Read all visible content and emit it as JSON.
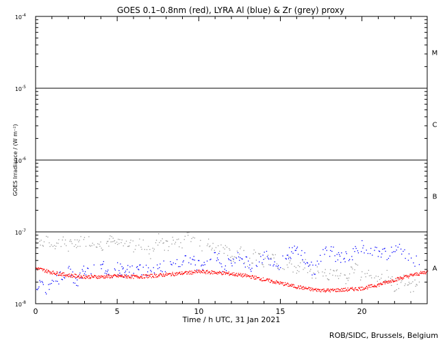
{
  "chart_data": {
    "type": "scatter",
    "title": "GOES 0.1–0.8nm (red), LYRA Al (blue) & Zr (grey) proxy",
    "xlabel": "Time / h UTC, 31 Jan 2021",
    "ylabel": "GOES Irradiance / (W m⁻²)",
    "credit": "ROB/SIDC, Brussels, Belgium",
    "xlim": [
      0,
      24
    ],
    "ylim_log10": [
      -8,
      -4
    ],
    "x_ticks": [
      {
        "value": 0,
        "label": "0"
      },
      {
        "value": 5,
        "label": "5"
      },
      {
        "value": 10,
        "label": "10"
      },
      {
        "value": 15,
        "label": "15"
      },
      {
        "value": 20,
        "label": "20"
      }
    ],
    "y_ticks": [
      {
        "exp": -8,
        "base": "10",
        "sup": "-8"
      },
      {
        "exp": -7,
        "base": "10",
        "sup": "-7"
      },
      {
        "exp": -6,
        "base": "10",
        "sup": "-6"
      },
      {
        "exp": -5,
        "base": "10",
        "sup": "-5"
      },
      {
        "exp": -4,
        "base": "10",
        "sup": "-4"
      }
    ],
    "flare_class_lines": [
      -7,
      -6,
      -5
    ],
    "flare_classes": [
      {
        "label": "A",
        "exp": -7.5
      },
      {
        "label": "B",
        "exp": -6.5
      },
      {
        "label": "C",
        "exp": -5.5
      },
      {
        "label": "M",
        "exp": -4.5
      }
    ],
    "series": [
      {
        "name": "GOES 0.1-0.8nm",
        "color": "#ff0000",
        "x": [
          0,
          1,
          2,
          3,
          4,
          5,
          6,
          7,
          8,
          9,
          10,
          11,
          12,
          13,
          14,
          15,
          16,
          17,
          18,
          19,
          20,
          21,
          22,
          23,
          24
        ],
        "y_log10": [
          -7.5,
          -7.56,
          -7.6,
          -7.62,
          -7.62,
          -7.61,
          -7.62,
          -7.61,
          -7.59,
          -7.57,
          -7.55,
          -7.56,
          -7.58,
          -7.61,
          -7.66,
          -7.71,
          -7.76,
          -7.8,
          -7.81,
          -7.8,
          -7.78,
          -7.73,
          -7.66,
          -7.6,
          -7.55
        ]
      },
      {
        "name": "LYRA Al proxy",
        "color": "#0000ff",
        "x": [
          0,
          0.5,
          1,
          1.5,
          2,
          2.5,
          3,
          3.5,
          4,
          4.5,
          5,
          5.5,
          6,
          6.5,
          7,
          7.5,
          8,
          8.5,
          9,
          9.5,
          10,
          10.5,
          11,
          11.5,
          12,
          12.5,
          13,
          13.5,
          14,
          14.5,
          15,
          15.5,
          16,
          16.5,
          17,
          17.5,
          18,
          18.5,
          19,
          19.5,
          20,
          20.5,
          21,
          21.5,
          22,
          22.5,
          23,
          23.5
        ],
        "y_log10": [
          -7.7,
          -7.8,
          -7.75,
          -7.6,
          -7.55,
          -7.7,
          -7.5,
          -7.55,
          -7.45,
          -7.6,
          -7.5,
          -7.55,
          -7.5,
          -7.55,
          -7.5,
          -7.45,
          -7.5,
          -7.48,
          -7.35,
          -7.4,
          -7.45,
          -7.4,
          -7.3,
          -7.5,
          -7.4,
          -7.35,
          -7.45,
          -7.5,
          -7.3,
          -7.4,
          -7.45,
          -7.3,
          -7.25,
          -7.35,
          -7.55,
          -7.3,
          -7.25,
          -7.35,
          -7.35,
          -7.3,
          -7.2,
          -7.25,
          -7.3,
          -7.3,
          -7.2,
          -7.3,
          -7.35,
          -7.45
        ]
      },
      {
        "name": "LYRA Zr proxy",
        "color": "#999999",
        "x": [
          0,
          0.5,
          1,
          1.5,
          2,
          2.5,
          3,
          3.5,
          4,
          4.5,
          5,
          5.5,
          6,
          6.5,
          7,
          7.5,
          8,
          8.5,
          9,
          9.5,
          10,
          10.5,
          11,
          11.5,
          12,
          12.5,
          13,
          13.5,
          14,
          14.5,
          15,
          15.5,
          16,
          16.5,
          17,
          17.5,
          18,
          18.5,
          19,
          19.5,
          20,
          20.5,
          21,
          21.5,
          22,
          22.5,
          23,
          23.5
        ],
        "y_log10": [
          -7.15,
          -7.13,
          -7.17,
          -7.12,
          -7.2,
          -7.12,
          -7.14,
          -7.1,
          -7.18,
          -7.12,
          -7.15,
          -7.12,
          -7.2,
          -7.15,
          -7.3,
          -7.1,
          -7.2,
          -7.1,
          -7.15,
          -7.05,
          -7.2,
          -7.15,
          -7.25,
          -7.2,
          -7.35,
          -7.25,
          -7.4,
          -7.3,
          -7.45,
          -7.35,
          -7.5,
          -7.4,
          -7.55,
          -7.45,
          -7.6,
          -7.5,
          -7.6,
          -7.55,
          -7.65,
          -7.5,
          -7.6,
          -7.55,
          -7.7,
          -7.6,
          -7.75,
          -7.65,
          -7.8,
          -7.6
        ]
      }
    ]
  }
}
